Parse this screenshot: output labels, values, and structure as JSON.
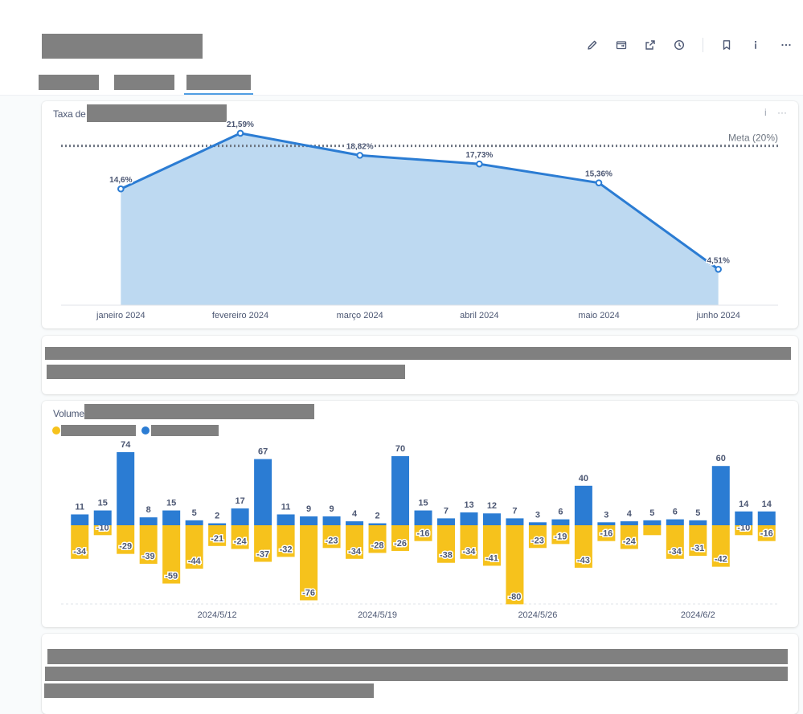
{
  "colors": {
    "line": "#2b7cd3",
    "area": "#bdd9f1",
    "bar_blue": "#2b7cd3",
    "bar_yellow": "#f6c21c",
    "accent": "#509ee3",
    "redact": "#808080"
  },
  "header": {
    "toolbar_icons": [
      "pencil-icon",
      "move-to-collection-icon",
      "share-icon",
      "history-icon",
      "bookmark-icon",
      "info-icon",
      "more-icon"
    ]
  },
  "line_card": {
    "title_prefix": "Taxa de",
    "menu_info": "i",
    "menu_more": "···",
    "meta_label": "Meta (20%)"
  },
  "bar_card": {
    "title_prefix": "Volume"
  },
  "chart_data": [
    {
      "type": "area",
      "title": "Taxa de",
      "categories": [
        "janeiro 2024",
        "fevereiro 2024",
        "março 2024",
        "abril 2024",
        "maio 2024",
        "junho 2024"
      ],
      "values": [
        14.6,
        21.59,
        18.82,
        17.73,
        15.36,
        4.51
      ],
      "value_labels": [
        "14,6%",
        "21,59%",
        "18,82%",
        "17,73%",
        "15,36%",
        "4,51%"
      ],
      "goal": {
        "value": 20,
        "label": "Meta (20%)"
      },
      "ylim": [
        0,
        24
      ],
      "grid": false
    },
    {
      "type": "bar",
      "title": "Volume",
      "stacked": true,
      "x_tick_labels": [
        {
          "index": 6,
          "label": "2024/5/12"
        },
        {
          "index": 13,
          "label": "2024/5/19"
        },
        {
          "index": 20,
          "label": "2024/5/26"
        },
        {
          "index": 27,
          "label": "2024/6/2"
        }
      ],
      "series": [
        {
          "color": "#2b7cd3",
          "values": [
            11,
            15,
            74,
            8,
            15,
            5,
            2,
            17,
            67,
            11,
            9,
            9,
            4,
            2,
            70,
            15,
            7,
            13,
            12,
            7,
            3,
            6,
            40,
            3,
            4,
            5,
            6,
            5,
            60,
            14,
            14
          ],
          "labels": [
            "11",
            "15",
            "74",
            "8",
            "15",
            "5",
            "2",
            "17",
            "67",
            "11",
            "9",
            "9",
            "4",
            "2",
            "70",
            "15",
            "7",
            "13",
            "12",
            "7",
            "3",
            "6",
            "40",
            "3",
            "4",
            "5",
            "6",
            "5",
            "60",
            "14",
            "14"
          ]
        },
        {
          "color": "#f6c21c",
          "values": [
            -34,
            -10,
            -29,
            -39,
            -59,
            -44,
            -21,
            -24,
            -37,
            -32,
            -76,
            -23,
            -34,
            -28,
            -26,
            -16,
            -38,
            -34,
            -41,
            -80,
            -23,
            -19,
            -43,
            -16,
            -24,
            -10,
            -34,
            -31,
            -42,
            -10,
            -16
          ],
          "labels": [
            "-34",
            "-10",
            "-29",
            "-39",
            "-59",
            "-44",
            "-21",
            "-24",
            "-37",
            "-32",
            "-76",
            "-23",
            "-34",
            "-28",
            "-26",
            "-16",
            "-38",
            "-34",
            "-41",
            "-80",
            "-23",
            "-19",
            "-43",
            "-16",
            "-24",
            "",
            "-34",
            "-31",
            "-42",
            "-10",
            "-16"
          ]
        }
      ],
      "ylim": [
        -80,
        74
      ]
    }
  ]
}
